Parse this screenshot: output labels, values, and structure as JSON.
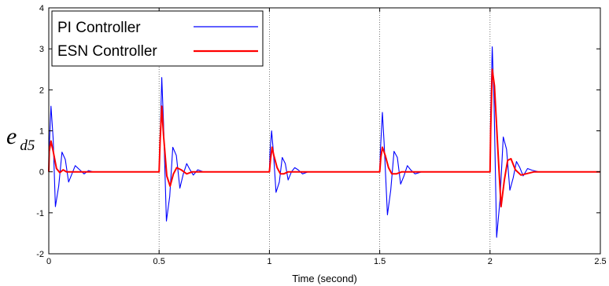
{
  "chart_data": {
    "type": "line",
    "title": "",
    "xlabel": "Time (second)",
    "ylabel": "e_d5",
    "ylabel_main": "e",
    "ylabel_sub": "d5",
    "xlim": [
      0,
      2.5
    ],
    "ylim": [
      -2,
      4
    ],
    "xticks": [
      0,
      0.5,
      1,
      1.5,
      2,
      2.5
    ],
    "xtick_labels": [
      "0",
      "0.5",
      "1",
      "1.5",
      "2",
      "2.5"
    ],
    "yticks": [
      -2,
      -1,
      0,
      1,
      2,
      3,
      4
    ],
    "ytick_labels": [
      "-2",
      "-1",
      "0",
      "1",
      "2",
      "3",
      "4"
    ],
    "grid": "vertical dotted",
    "legend_position": "top-left",
    "series": [
      {
        "name": "PI Controller",
        "color": "#0000ff",
        "x": [
          0,
          0.002,
          0.01,
          0.02,
          0.03,
          0.045,
          0.06,
          0.075,
          0.09,
          0.105,
          0.12,
          0.14,
          0.16,
          0.18,
          0.2,
          0.23,
          0.5,
          0.505,
          0.512,
          0.52,
          0.533,
          0.548,
          0.562,
          0.578,
          0.594,
          0.61,
          0.625,
          0.64,
          0.655,
          0.675,
          0.7,
          0.73,
          1.0,
          1.003,
          1.01,
          1.018,
          1.03,
          1.045,
          1.058,
          1.072,
          1.085,
          1.1,
          1.115,
          1.13,
          1.15,
          1.175,
          1.5,
          1.503,
          1.512,
          1.52,
          1.535,
          1.55,
          1.565,
          1.58,
          1.595,
          1.61,
          1.625,
          1.64,
          1.66,
          1.69,
          2.0,
          2.003,
          2.01,
          2.018,
          2.03,
          2.045,
          2.06,
          2.075,
          2.09,
          2.105,
          2.12,
          2.135,
          2.15,
          2.17,
          2.19,
          2.22,
          2.5
        ],
        "y": [
          0,
          0.6,
          1.6,
          0.8,
          -0.85,
          -0.35,
          0.48,
          0.3,
          -0.25,
          -0.05,
          0.15,
          0.05,
          -0.05,
          0.03,
          0,
          0,
          0,
          0.8,
          2.3,
          1.2,
          -1.2,
          -0.6,
          0.6,
          0.4,
          -0.4,
          -0.05,
          0.2,
          0.05,
          -0.08,
          0.05,
          0,
          0,
          0,
          0.5,
          1.0,
          0.5,
          -0.5,
          -0.25,
          0.35,
          0.2,
          -0.2,
          0,
          0.1,
          0.05,
          -0.05,
          0,
          0,
          0.5,
          1.45,
          0.7,
          -1.05,
          -0.45,
          0.5,
          0.35,
          -0.3,
          -0.1,
          0.15,
          0.05,
          -0.05,
          0,
          0,
          1.4,
          3.05,
          1.8,
          -1.6,
          -0.7,
          0.85,
          0.55,
          -0.45,
          -0.15,
          0.25,
          0.1,
          -0.1,
          0.08,
          0.04,
          0,
          0
        ]
      },
      {
        "name": "ESN Controller",
        "color": "#ff0000",
        "x": [
          0,
          0.002,
          0.01,
          0.02,
          0.035,
          0.05,
          0.065,
          0.08,
          0.1,
          0.15,
          0.5,
          0.505,
          0.512,
          0.52,
          0.535,
          0.55,
          0.565,
          0.58,
          0.6,
          0.625,
          0.65,
          0.7,
          1.0,
          1.005,
          1.012,
          1.02,
          1.035,
          1.05,
          1.065,
          1.085,
          1.15,
          1.5,
          1.505,
          1.512,
          1.525,
          1.54,
          1.555,
          1.575,
          1.6,
          1.65,
          2.0,
          2.003,
          2.01,
          2.02,
          2.035,
          2.05,
          2.065,
          2.08,
          2.095,
          2.115,
          2.14,
          2.2,
          2.5
        ],
        "y": [
          0,
          0.5,
          0.75,
          0.5,
          0.08,
          -0.02,
          0.05,
          0,
          0,
          0,
          0,
          0.8,
          1.6,
          0.9,
          -0.1,
          -0.35,
          -0.05,
          0.1,
          0.05,
          -0.05,
          0,
          0,
          0,
          0.3,
          0.6,
          0.4,
          0.1,
          -0.05,
          -0.05,
          0,
          0,
          0,
          0.35,
          0.6,
          0.4,
          0.1,
          -0.05,
          -0.05,
          0,
          0,
          0,
          1.0,
          2.5,
          2.1,
          0.6,
          -0.85,
          -0.2,
          0.28,
          0.32,
          0.05,
          -0.08,
          0,
          0
        ]
      }
    ]
  }
}
